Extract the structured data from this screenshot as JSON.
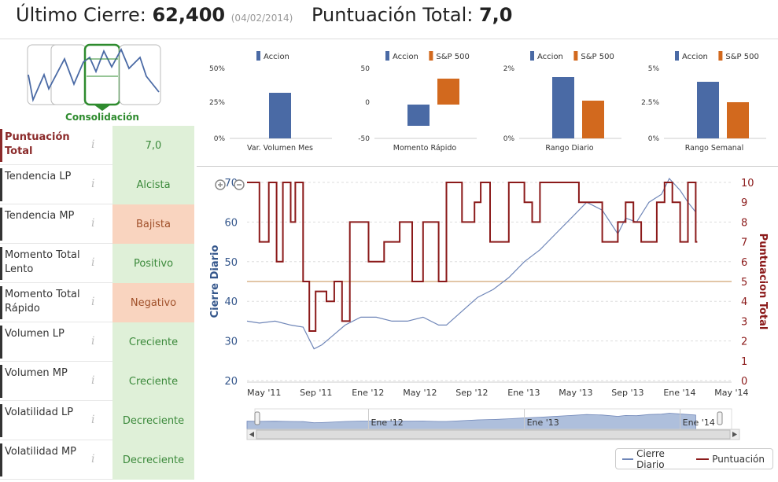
{
  "header": {
    "last_close_label": "Último Cierre:",
    "last_close_value": "62,400",
    "last_close_date": "(04/02/2014)",
    "score_label": "Puntuación Total:",
    "score_value": "7,0"
  },
  "pattern": {
    "label": "Consolidación"
  },
  "minicharts": [
    {
      "legend": [
        "Accion"
      ],
      "ticks": [
        "50%",
        "25%",
        "0%"
      ],
      "label": "Var. Volumen Mes"
    },
    {
      "legend": [
        "Accion",
        "S&P 500"
      ],
      "ticks": [
        "50",
        "0",
        "-50"
      ],
      "label": "Momento Rápido"
    },
    {
      "legend": [
        "Accion",
        "S&P 500"
      ],
      "ticks": [
        "2%",
        "0%"
      ],
      "label": "Rango Diario"
    },
    {
      "legend": [
        "Accion",
        "S&P 500"
      ],
      "ticks": [
        "5%",
        "2.5%",
        "0%"
      ],
      "label": "Rango Semanal"
    }
  ],
  "indicators": [
    {
      "name": "Puntuación Total",
      "value": "7,0",
      "tone": "green"
    },
    {
      "name": "Tendencia LP",
      "value": "Alcista",
      "tone": "green"
    },
    {
      "name": "Tendencia MP",
      "value": "Bajista",
      "tone": "orange"
    },
    {
      "name": "Momento Total Lento",
      "value": "Positivo",
      "tone": "green"
    },
    {
      "name": "Momento Total Rápido",
      "value": "Negativo",
      "tone": "orange"
    },
    {
      "name": "Volumen LP",
      "value": "Creciente",
      "tone": "green"
    },
    {
      "name": "Volumen MP",
      "value": "Creciente",
      "tone": "green"
    },
    {
      "name": "Volatilidad LP",
      "value": "Decreciente",
      "tone": "green"
    },
    {
      "name": "Volatilidad MP",
      "value": "Decreciente",
      "tone": "green"
    }
  ],
  "info_glyph": "i",
  "colors": {
    "accion": "#4a6aa5",
    "sp500": "#d2691e",
    "close_line": "#6f86b8",
    "score_line": "#8b1a1a",
    "ref_line": "#d8b48a",
    "nav_fill": "#aebfdc"
  },
  "chart_data": {
    "type": "line",
    "title": "",
    "x_ticks": [
      "May '11",
      "Sep '11",
      "Ene '12",
      "May '12",
      "Sep '12",
      "Ene '13",
      "May '13",
      "Sep '13",
      "Ene '14",
      "May '14"
    ],
    "y_left_label": "Cierre Diario",
    "y_left_ticks": [
      20,
      30,
      40,
      50,
      60,
      70
    ],
    "ylim_left": [
      20,
      70
    ],
    "y_right_label": "Puntuacion Total",
    "y_right_ticks": [
      0,
      1,
      2,
      3,
      4,
      5,
      6,
      7,
      8,
      9,
      10
    ],
    "ylim_right": [
      0,
      10
    ],
    "xlim": [
      2011.22,
      2014.33
    ],
    "series": [
      {
        "name": "Cierre Diario",
        "axis": "left",
        "x": [
          2011.22,
          2011.3,
          2011.4,
          2011.5,
          2011.58,
          2011.65,
          2011.7,
          2011.76,
          2011.85,
          2011.95,
          2012.05,
          2012.15,
          2012.25,
          2012.35,
          2012.45,
          2012.5,
          2012.6,
          2012.7,
          2012.8,
          2012.9,
          2013.0,
          2013.1,
          2013.2,
          2013.3,
          2013.4,
          2013.5,
          2013.6,
          2013.65,
          2013.72,
          2013.8,
          2013.88,
          2013.93,
          2014.0,
          2014.05,
          2014.1
        ],
        "values": [
          35,
          34.5,
          35,
          34,
          33.5,
          28,
          29,
          31,
          34,
          36,
          36,
          35,
          35,
          36,
          34,
          34,
          37.5,
          41,
          43,
          46,
          50,
          53,
          57,
          61,
          65,
          63,
          57,
          61,
          60,
          65,
          67,
          71,
          68,
          65,
          62.5
        ]
      },
      {
        "name": "Puntuación",
        "axis": "right",
        "step": true,
        "x": [
          2011.22,
          2011.3,
          2011.36,
          2011.41,
          2011.45,
          2011.5,
          2011.53,
          2011.58,
          2011.62,
          2011.66,
          2011.73,
          2011.78,
          2011.83,
          2011.88,
          2011.95,
          2012.0,
          2012.1,
          2012.2,
          2012.28,
          2012.35,
          2012.45,
          2012.5,
          2012.6,
          2012.68,
          2012.72,
          2012.78,
          2012.9,
          2013.0,
          2013.05,
          2013.1,
          2013.2,
          2013.35,
          2013.5,
          2013.6,
          2013.65,
          2013.7,
          2013.75,
          2013.85,
          2013.9,
          2013.95,
          2014.0,
          2014.05,
          2014.1
        ],
        "values": [
          10,
          7,
          10,
          6,
          10,
          8,
          10,
          5,
          2.5,
          4.5,
          4,
          5,
          3,
          8,
          8,
          6,
          7,
          8,
          5,
          8,
          5,
          10,
          8,
          9,
          10,
          7,
          10,
          9,
          8,
          10,
          10,
          9,
          7,
          8,
          9,
          8,
          7,
          9,
          10,
          9,
          7,
          10,
          7
        ]
      }
    ],
    "reference_line": {
      "axis": "left",
      "value": 45
    },
    "navigator_ticks": [
      "Ene '12",
      "Ene '13",
      "Ene '14"
    ],
    "legend_placement": "bottom-right"
  }
}
